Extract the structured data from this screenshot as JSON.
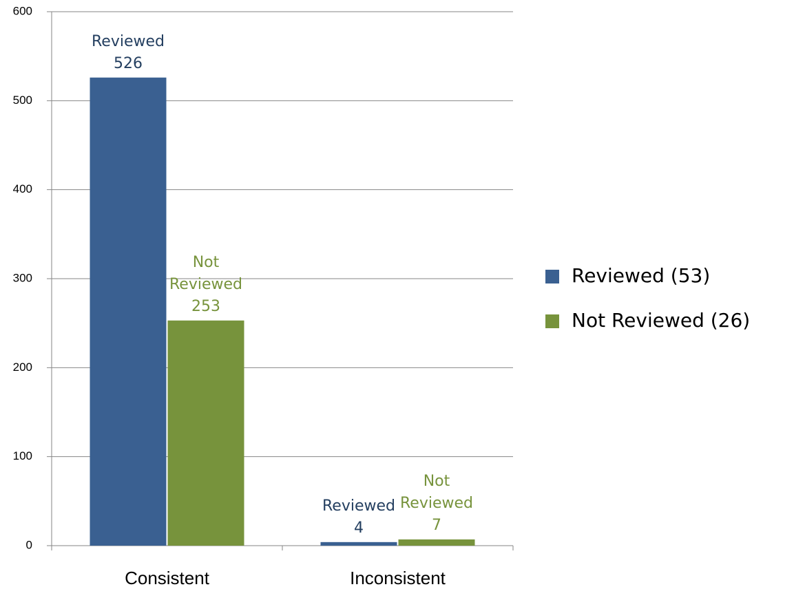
{
  "chart_data": {
    "type": "bar",
    "categories": [
      "Consistent",
      "Inconsistent"
    ],
    "series": [
      {
        "name": "Reviewed (53)",
        "data_label_name": "Reviewed",
        "color": "#3a6091",
        "label_color": "#243f60",
        "values": [
          526,
          4
        ]
      },
      {
        "name": "Not Reviewed (26)",
        "data_label_name": "Not Reviewed",
        "color": "#77933c",
        "label_color": "#77933c",
        "values": [
          253,
          7
        ]
      }
    ],
    "ylim": [
      0,
      600
    ],
    "yticks": [
      0,
      100,
      200,
      300,
      400,
      500,
      600
    ],
    "grid": true,
    "legend": "right"
  }
}
